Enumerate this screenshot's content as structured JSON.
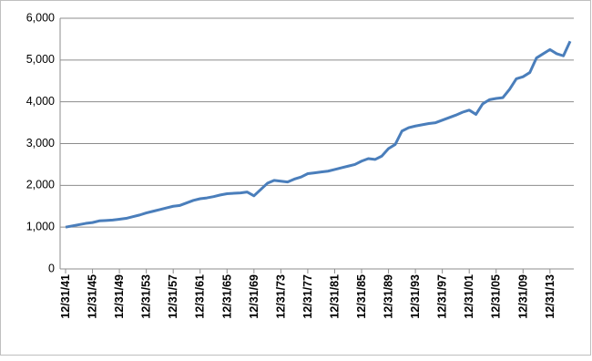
{
  "chart_data": {
    "type": "line",
    "categories": [
      "12/31/41",
      null,
      null,
      null,
      "12/31/45",
      null,
      null,
      null,
      "12/31/49",
      null,
      null,
      null,
      "12/31/53",
      null,
      null,
      null,
      "12/31/57",
      null,
      null,
      null,
      "12/31/61",
      null,
      null,
      null,
      "12/31/65",
      null,
      null,
      null,
      "12/31/69",
      null,
      null,
      null,
      "12/31/73",
      null,
      null,
      null,
      "12/31/77",
      null,
      null,
      null,
      "12/31/81",
      null,
      null,
      null,
      "12/31/85",
      null,
      null,
      null,
      "12/31/89",
      null,
      null,
      null,
      "12/31/93",
      null,
      null,
      null,
      "12/31/97",
      null,
      null,
      null,
      "12/31/01",
      null,
      null,
      null,
      "12/31/05",
      null,
      null,
      null,
      "12/31/09",
      null,
      null,
      null,
      "12/31/13",
      null,
      null,
      null
    ],
    "values": [
      1000,
      1030,
      1060,
      1090,
      1110,
      1150,
      1160,
      1170,
      1190,
      1210,
      1250,
      1290,
      1340,
      1380,
      1420,
      1460,
      1500,
      1520,
      1580,
      1640,
      1680,
      1700,
      1730,
      1770,
      1800,
      1810,
      1820,
      1840,
      1750,
      1900,
      2050,
      2120,
      2100,
      2080,
      2150,
      2200,
      2280,
      2300,
      2320,
      2340,
      2380,
      2420,
      2460,
      2500,
      2580,
      2640,
      2620,
      2700,
      2880,
      2980,
      3300,
      3380,
      3420,
      3450,
      3480,
      3500,
      3560,
      3620,
      3680,
      3750,
      3800,
      3700,
      3950,
      4050,
      4080,
      4100,
      4300,
      4550,
      4600,
      4700,
      5050,
      5150,
      5250,
      5150,
      5100,
      5450
    ],
    "color": "#4a7ebb",
    "ylim": [
      0,
      6000
    ],
    "yticks": [
      0,
      {
        "value": 1000,
        "label": "1,000"
      },
      {
        "value": 2000,
        "label": "2,000"
      },
      {
        "value": 3000,
        "label": "3,000"
      },
      {
        "value": 4000,
        "label": "4,000"
      },
      {
        "value": 5000,
        "label": "5,000"
      },
      {
        "value": 6000,
        "label": "6,000"
      }
    ],
    "grid": true
  }
}
